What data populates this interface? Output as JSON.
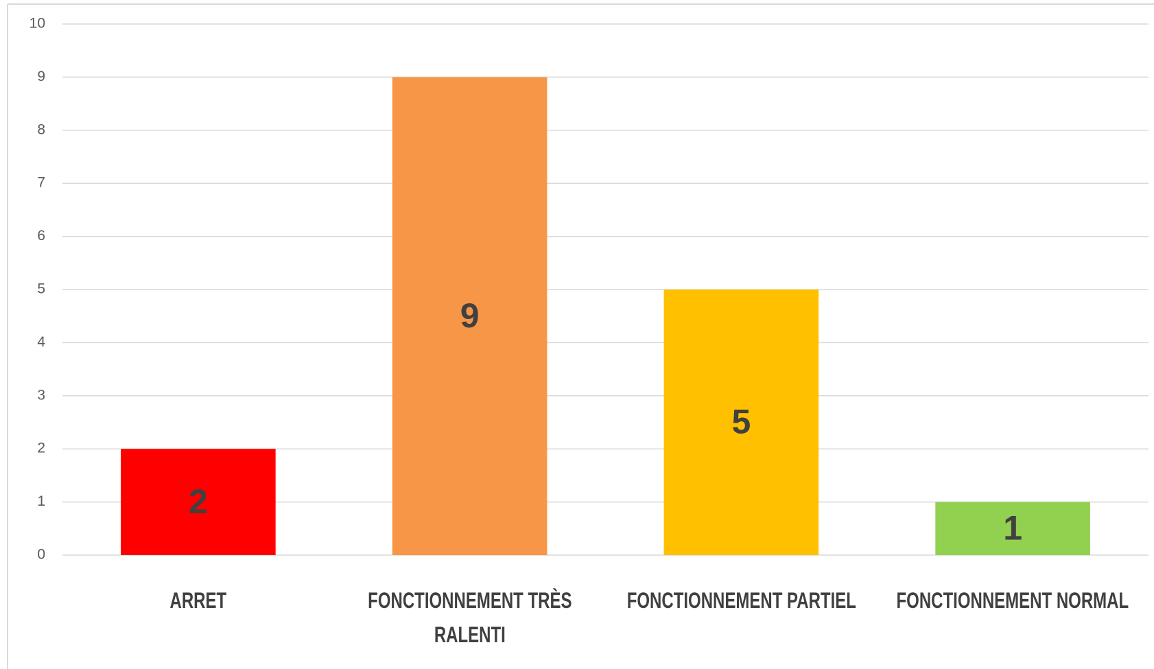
{
  "chart_data": {
    "type": "bar",
    "categories": [
      "ARRET",
      "FONCTIONNEMENT TRÈS RALENTI",
      "FONCTIONNEMENT PARTIEL",
      "FONCTIONNEMENT NORMAL"
    ],
    "values": [
      2,
      9,
      5,
      1
    ],
    "colors": [
      "#ff0000",
      "#f79646",
      "#ffc000",
      "#92d050"
    ],
    "ylim": [
      0,
      10
    ],
    "yticks": [
      0,
      1,
      2,
      3,
      4,
      5,
      6,
      7,
      8,
      9,
      10
    ],
    "grid": true
  }
}
